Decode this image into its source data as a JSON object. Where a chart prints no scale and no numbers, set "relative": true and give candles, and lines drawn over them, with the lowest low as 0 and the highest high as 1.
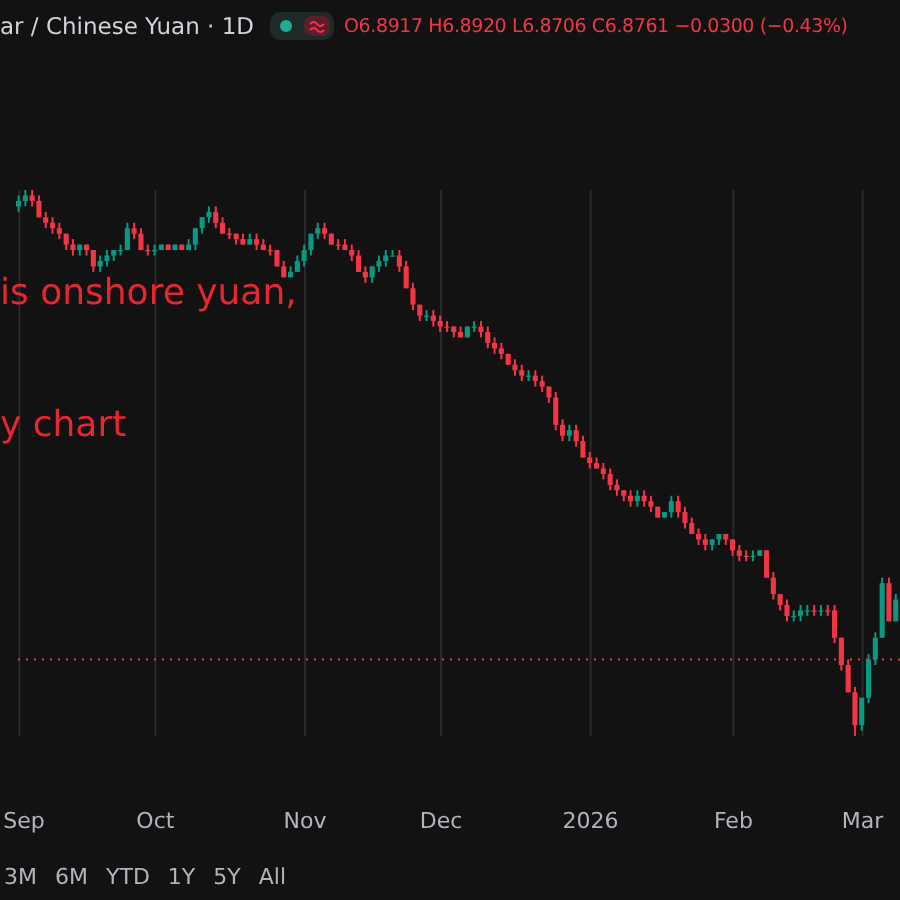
{
  "chart_data": {
    "type": "candlestick",
    "title": "ar / Chinese Yuan · 1D",
    "subtitle": "O6.8917 H6.8920 L6.8706 C6.8761 −0.0300 (−0.43%)",
    "relative": true,
    "grid": "x",
    "categories": [
      "Sep",
      null,
      null,
      null,
      null,
      null,
      null,
      null,
      null,
      null,
      null,
      null,
      null,
      null,
      null,
      null,
      null,
      null,
      null,
      null,
      "Oct",
      null,
      null,
      null,
      null,
      null,
      null,
      null,
      null,
      null,
      null,
      null,
      null,
      null,
      null,
      null,
      null,
      null,
      null,
      null,
      null,
      null,
      "Nov",
      null,
      null,
      null,
      null,
      null,
      null,
      null,
      null,
      null,
      null,
      null,
      null,
      null,
      null,
      null,
      null,
      null,
      null,
      null,
      "Dec",
      null,
      null,
      null,
      null,
      null,
      null,
      null,
      null,
      null,
      null,
      null,
      null,
      null,
      null,
      null,
      null,
      null,
      null,
      null,
      null,
      null,
      "2026",
      null,
      null,
      null,
      null,
      null,
      null,
      null,
      null,
      null,
      null,
      null,
      null,
      null,
      null,
      null,
      null,
      null,
      null,
      null,
      null,
      "Feb",
      null,
      null,
      null,
      null,
      null,
      null,
      null,
      null,
      null,
      null,
      null,
      null,
      null,
      null,
      null,
      null,
      null,
      null,
      "Mar",
      null,
      null,
      null,
      null,
      null
    ],
    "ohlc": [
      [
        0.97,
        0.99,
        0.96,
        0.98
      ],
      [
        0.98,
        1.0,
        0.97,
        0.99
      ],
      [
        0.99,
        1.0,
        0.97,
        0.98
      ],
      [
        0.98,
        0.99,
        0.95,
        0.95
      ],
      [
        0.95,
        0.96,
        0.93,
        0.94
      ],
      [
        0.94,
        0.95,
        0.92,
        0.93
      ],
      [
        0.93,
        0.94,
        0.91,
        0.92
      ],
      [
        0.92,
        0.92,
        0.89,
        0.9
      ],
      [
        0.9,
        0.91,
        0.88,
        0.89
      ],
      [
        0.89,
        0.9,
        0.88,
        0.9
      ],
      [
        0.9,
        0.9,
        0.88,
        0.89
      ],
      [
        0.89,
        0.89,
        0.85,
        0.86
      ],
      [
        0.86,
        0.88,
        0.85,
        0.87
      ],
      [
        0.87,
        0.89,
        0.86,
        0.88
      ],
      [
        0.88,
        0.89,
        0.87,
        0.89
      ],
      [
        0.89,
        0.9,
        0.88,
        0.89
      ],
      [
        0.89,
        0.94,
        0.89,
        0.93
      ],
      [
        0.93,
        0.94,
        0.91,
        0.92
      ],
      [
        0.92,
        0.93,
        0.89,
        0.89
      ],
      [
        0.89,
        0.9,
        0.88,
        0.89
      ],
      [
        0.89,
        0.9,
        0.88,
        0.89
      ],
      [
        0.89,
        0.9,
        0.89,
        0.9
      ],
      [
        0.9,
        0.9,
        0.89,
        0.89
      ],
      [
        0.89,
        0.9,
        0.89,
        0.9
      ],
      [
        0.9,
        0.9,
        0.89,
        0.89
      ],
      [
        0.89,
        0.91,
        0.89,
        0.9
      ],
      [
        0.9,
        0.93,
        0.89,
        0.93
      ],
      [
        0.93,
        0.95,
        0.92,
        0.95
      ],
      [
        0.95,
        0.97,
        0.94,
        0.96
      ],
      [
        0.96,
        0.97,
        0.93,
        0.94
      ],
      [
        0.94,
        0.95,
        0.92,
        0.92
      ],
      [
        0.92,
        0.93,
        0.91,
        0.92
      ],
      [
        0.92,
        0.92,
        0.9,
        0.91
      ],
      [
        0.91,
        0.92,
        0.9,
        0.9
      ],
      [
        0.9,
        0.92,
        0.9,
        0.91
      ],
      [
        0.91,
        0.92,
        0.89,
        0.9
      ],
      [
        0.9,
        0.91,
        0.89,
        0.89
      ],
      [
        0.89,
        0.9,
        0.88,
        0.89
      ],
      [
        0.89,
        0.89,
        0.86,
        0.86
      ],
      [
        0.86,
        0.87,
        0.84,
        0.84
      ],
      [
        0.84,
        0.86,
        0.84,
        0.85
      ],
      [
        0.85,
        0.88,
        0.85,
        0.87
      ],
      [
        0.87,
        0.9,
        0.86,
        0.89
      ],
      [
        0.89,
        0.92,
        0.88,
        0.92
      ],
      [
        0.92,
        0.94,
        0.91,
        0.93
      ],
      [
        0.93,
        0.94,
        0.91,
        0.92
      ],
      [
        0.92,
        0.92,
        0.9,
        0.9
      ],
      [
        0.9,
        0.91,
        0.89,
        0.9
      ],
      [
        0.9,
        0.91,
        0.89,
        0.89
      ],
      [
        0.89,
        0.9,
        0.87,
        0.88
      ],
      [
        0.88,
        0.89,
        0.85,
        0.85
      ],
      [
        0.85,
        0.86,
        0.83,
        0.84
      ],
      [
        0.84,
        0.86,
        0.83,
        0.86
      ],
      [
        0.86,
        0.88,
        0.85,
        0.87
      ],
      [
        0.87,
        0.89,
        0.86,
        0.88
      ],
      [
        0.88,
        0.89,
        0.88,
        0.88
      ],
      [
        0.88,
        0.89,
        0.85,
        0.86
      ],
      [
        0.86,
        0.87,
        0.82,
        0.82
      ],
      [
        0.82,
        0.83,
        0.78,
        0.79
      ],
      [
        0.79,
        0.79,
        0.76,
        0.77
      ],
      [
        0.77,
        0.78,
        0.76,
        0.77
      ],
      [
        0.77,
        0.78,
        0.75,
        0.76
      ],
      [
        0.76,
        0.77,
        0.74,
        0.75
      ],
      [
        0.75,
        0.76,
        0.74,
        0.75
      ],
      [
        0.75,
        0.75,
        0.73,
        0.74
      ],
      [
        0.74,
        0.75,
        0.73,
        0.73
      ],
      [
        0.73,
        0.75,
        0.73,
        0.75
      ],
      [
        0.75,
        0.76,
        0.74,
        0.75
      ],
      [
        0.75,
        0.76,
        0.73,
        0.74
      ],
      [
        0.74,
        0.75,
        0.71,
        0.72
      ],
      [
        0.72,
        0.73,
        0.7,
        0.71
      ],
      [
        0.71,
        0.72,
        0.69,
        0.7
      ],
      [
        0.7,
        0.7,
        0.68,
        0.68
      ],
      [
        0.68,
        0.69,
        0.66,
        0.67
      ],
      [
        0.67,
        0.68,
        0.65,
        0.66
      ],
      [
        0.66,
        0.67,
        0.65,
        0.66
      ],
      [
        0.66,
        0.67,
        0.64,
        0.65
      ],
      [
        0.65,
        0.66,
        0.63,
        0.64
      ],
      [
        0.64,
        0.64,
        0.61,
        0.62
      ],
      [
        0.62,
        0.63,
        0.56,
        0.57
      ],
      [
        0.57,
        0.58,
        0.54,
        0.55
      ],
      [
        0.55,
        0.57,
        0.54,
        0.56
      ],
      [
        0.56,
        0.57,
        0.53,
        0.54
      ],
      [
        0.54,
        0.55,
        0.51,
        0.51
      ],
      [
        0.51,
        0.52,
        0.49,
        0.5
      ],
      [
        0.5,
        0.51,
        0.49,
        0.49
      ],
      [
        0.49,
        0.5,
        0.47,
        0.48
      ],
      [
        0.48,
        0.49,
        0.45,
        0.46
      ],
      [
        0.46,
        0.47,
        0.44,
        0.45
      ],
      [
        0.45,
        0.45,
        0.43,
        0.44
      ],
      [
        0.44,
        0.45,
        0.42,
        0.43
      ],
      [
        0.43,
        0.45,
        0.42,
        0.44
      ],
      [
        0.44,
        0.45,
        0.42,
        0.43
      ],
      [
        0.43,
        0.44,
        0.41,
        0.42
      ],
      [
        0.42,
        0.42,
        0.4,
        0.4
      ],
      [
        0.4,
        0.41,
        0.4,
        0.41
      ],
      [
        0.41,
        0.44,
        0.4,
        0.43
      ],
      [
        0.43,
        0.44,
        0.4,
        0.41
      ],
      [
        0.41,
        0.42,
        0.38,
        0.39
      ],
      [
        0.39,
        0.4,
        0.37,
        0.37
      ],
      [
        0.37,
        0.38,
        0.35,
        0.36
      ],
      [
        0.36,
        0.37,
        0.34,
        0.35
      ],
      [
        0.35,
        0.36,
        0.34,
        0.36
      ],
      [
        0.36,
        0.37,
        0.35,
        0.37
      ],
      [
        0.37,
        0.37,
        0.35,
        0.36
      ],
      [
        0.36,
        0.36,
        0.33,
        0.34
      ],
      [
        0.34,
        0.35,
        0.32,
        0.33
      ],
      [
        0.33,
        0.34,
        0.32,
        0.33
      ],
      [
        0.33,
        0.34,
        0.32,
        0.33
      ],
      [
        0.33,
        0.34,
        0.33,
        0.34
      ],
      [
        0.34,
        0.34,
        0.29,
        0.29
      ],
      [
        0.29,
        0.3,
        0.25,
        0.26
      ],
      [
        0.26,
        0.26,
        0.23,
        0.24
      ],
      [
        0.24,
        0.25,
        0.21,
        0.22
      ],
      [
        0.22,
        0.23,
        0.21,
        0.22
      ],
      [
        0.22,
        0.24,
        0.21,
        0.23
      ],
      [
        0.23,
        0.24,
        0.22,
        0.23
      ],
      [
        0.23,
        0.24,
        0.22,
        0.23
      ],
      [
        0.23,
        0.24,
        0.22,
        0.23
      ],
      [
        0.23,
        0.24,
        0.22,
        0.23
      ],
      [
        0.23,
        0.24,
        0.17,
        0.18
      ],
      [
        0.18,
        0.18,
        0.12,
        0.13
      ],
      [
        0.13,
        0.14,
        0.08,
        0.08
      ],
      [
        0.08,
        0.09,
        0,
        0.02
      ],
      [
        0.02,
        0.07,
        0.01,
        0.07
      ],
      [
        0.07,
        0.15,
        0.06,
        0.14
      ],
      [
        0.14,
        0.19,
        0.13,
        0.18
      ],
      [
        0.18,
        0.29,
        0.18,
        0.28
      ],
      [
        0.28,
        0.29,
        0.21,
        0.21
      ],
      [
        0.21,
        0.26,
        0.21,
        0.25
      ]
    ],
    "colors": [
      "#089981",
      "#089981",
      "#f23645",
      "#f23645",
      "#f23645",
      "#f23645",
      "#f23645",
      "#f23645",
      "#f23645",
      "#089981",
      "#f23645",
      "#f23645",
      "#089981",
      "#089981",
      "#089981",
      "#089981",
      "#089981",
      "#f23645",
      "#f23645",
      "#f23645",
      "#089981",
      "#089981",
      "#f23645",
      "#089981",
      "#f23645",
      "#089981",
      "#089981",
      "#089981",
      "#089981",
      "#f23645",
      "#f23645",
      "#f23645",
      "#f23645",
      "#f23645",
      "#089981",
      "#f23645",
      "#f23645",
      "#f23645",
      "#f23645",
      "#f23645",
      "#089981",
      "#089981",
      "#089981",
      "#089981",
      "#089981",
      "#f23645",
      "#f23645",
      "#f23645",
      "#f23645",
      "#f23645",
      "#f23645",
      "#f23645",
      "#089981",
      "#089981",
      "#089981",
      "#089981",
      "#f23645",
      "#f23645",
      "#f23645",
      "#f23645",
      "#089981",
      "#f23645",
      "#f23645",
      "#f23645",
      "#f23645",
      "#f23645",
      "#089981",
      "#089981",
      "#f23645",
      "#f23645",
      "#f23645",
      "#f23645",
      "#f23645",
      "#f23645",
      "#f23645",
      "#089981",
      "#f23645",
      "#f23645",
      "#f23645",
      "#f23645",
      "#f23645",
      "#089981",
      "#f23645",
      "#f23645",
      "#f23645",
      "#f23645",
      "#f23645",
      "#f23645",
      "#f23645",
      "#f23645",
      "#f23645",
      "#089981",
      "#f23645",
      "#f23645",
      "#f23645",
      "#089981",
      "#089981",
      "#f23645",
      "#f23645",
      "#f23645",
      "#f23645",
      "#f23645",
      "#089981",
      "#089981",
      "#f23645",
      "#f23645",
      "#f23645",
      "#f23645",
      "#089981",
      "#089981",
      "#f23645",
      "#f23645",
      "#f23645",
      "#f23645",
      "#089981",
      "#089981",
      "#089981",
      "#f23645",
      "#089981",
      "#f23645",
      "#f23645",
      "#f23645",
      "#f23645",
      "#f23645",
      "#089981",
      "#089981",
      "#089981",
      "#089981",
      "#f23645",
      "#089981"
    ],
    "ref_lines": [
      {
        "axis": "y",
        "value": 0.14,
        "color": "#f23645",
        "line_style": "dotted"
      }
    ],
    "annotations": [
      "is onshore yuan,",
      "y chart",
      "3M",
      "6M",
      "YTD",
      "1Y",
      "5Y",
      "All"
    ]
  }
}
